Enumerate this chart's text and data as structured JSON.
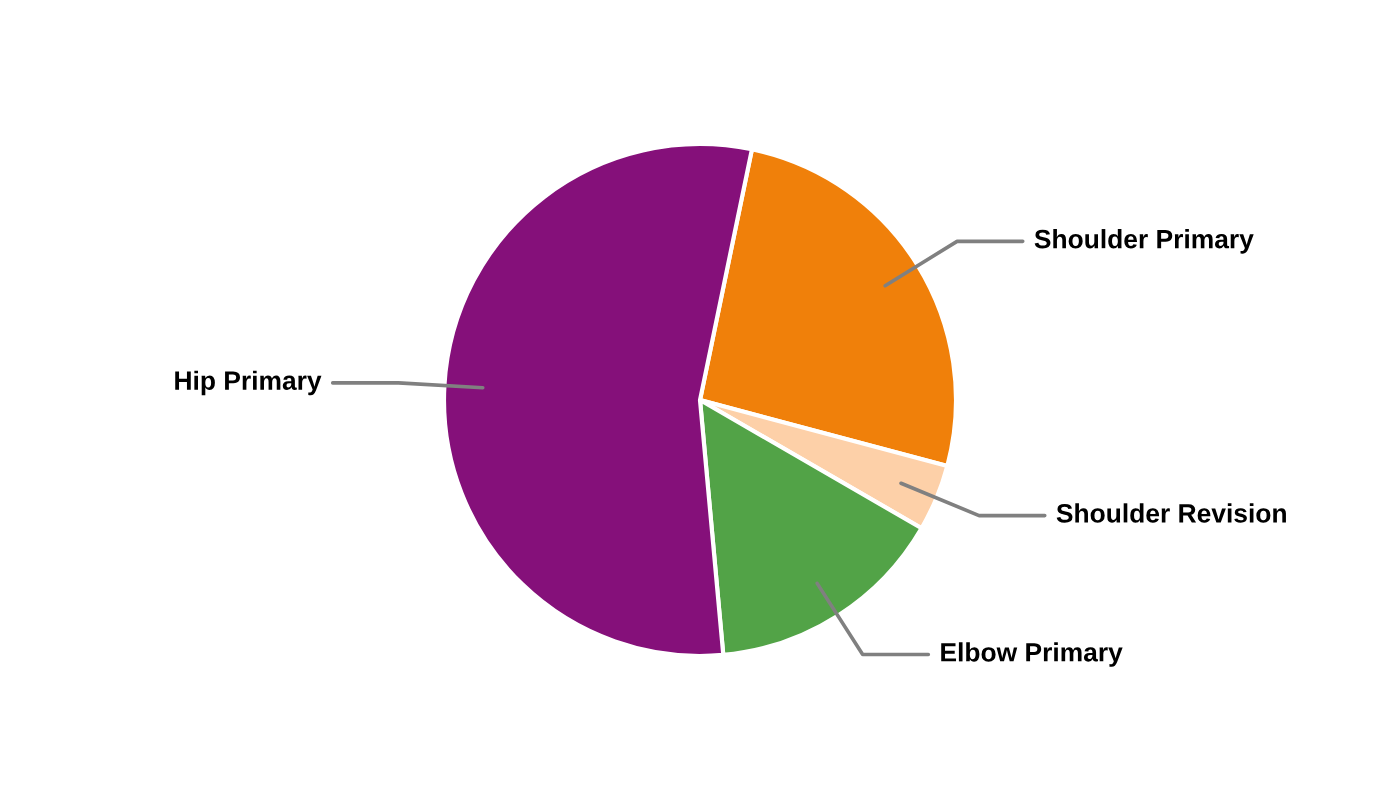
{
  "chart_data": {
    "type": "pie",
    "categories": [
      "Shoulder Primary",
      "Shoulder Revision",
      "Elbow Primary",
      "Hip Primary"
    ],
    "values": [
      25.9,
      4.2,
      15.2,
      54.7
    ],
    "colors": [
      "#f0800a",
      "#fdd0a8",
      "#52a347",
      "#85107a"
    ]
  }
}
